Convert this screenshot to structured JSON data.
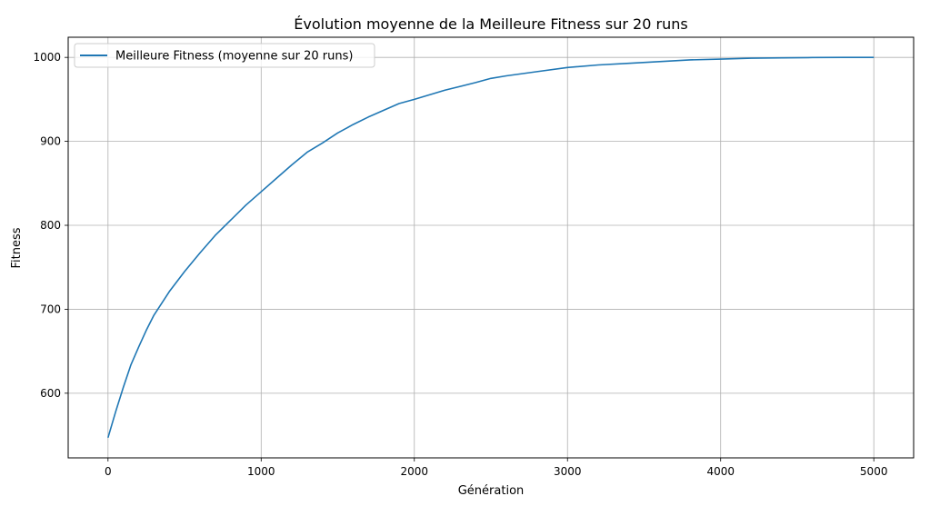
{
  "chart_data": {
    "type": "line",
    "title": "Évolution moyenne de la Meilleure Fitness sur 20 runs",
    "xlabel": "Génération",
    "ylabel": "Fitness",
    "xlim": [
      -260,
      5260
    ],
    "ylim": [
      523,
      1024
    ],
    "xticks": [
      0,
      1000,
      2000,
      3000,
      4000,
      5000
    ],
    "yticks": [
      600,
      700,
      800,
      900,
      1000
    ],
    "grid": true,
    "legend_position": "top-left",
    "series": [
      {
        "name": "Meilleure Fitness (moyenne sur 20 runs)",
        "color": "#1f77b4",
        "x": [
          0,
          50,
          100,
          150,
          200,
          250,
          300,
          400,
          500,
          600,
          700,
          800,
          900,
          1000,
          1100,
          1200,
          1300,
          1400,
          1500,
          1600,
          1700,
          1800,
          1900,
          2000,
          2200,
          2400,
          2500,
          2600,
          2800,
          3000,
          3200,
          3400,
          3600,
          3800,
          4000,
          4200,
          4400,
          4600,
          4800,
          5000
        ],
        "y": [
          547,
          578,
          607,
          634,
          655,
          675,
          693,
          721,
          745,
          767,
          788,
          806,
          824,
          840,
          856,
          872,
          887,
          898,
          910,
          920,
          929,
          937,
          945,
          950,
          961,
          970,
          975,
          978,
          983,
          988,
          991,
          993,
          995,
          997,
          998,
          999,
          999.5,
          999.8,
          1000,
          1000
        ]
      }
    ]
  }
}
